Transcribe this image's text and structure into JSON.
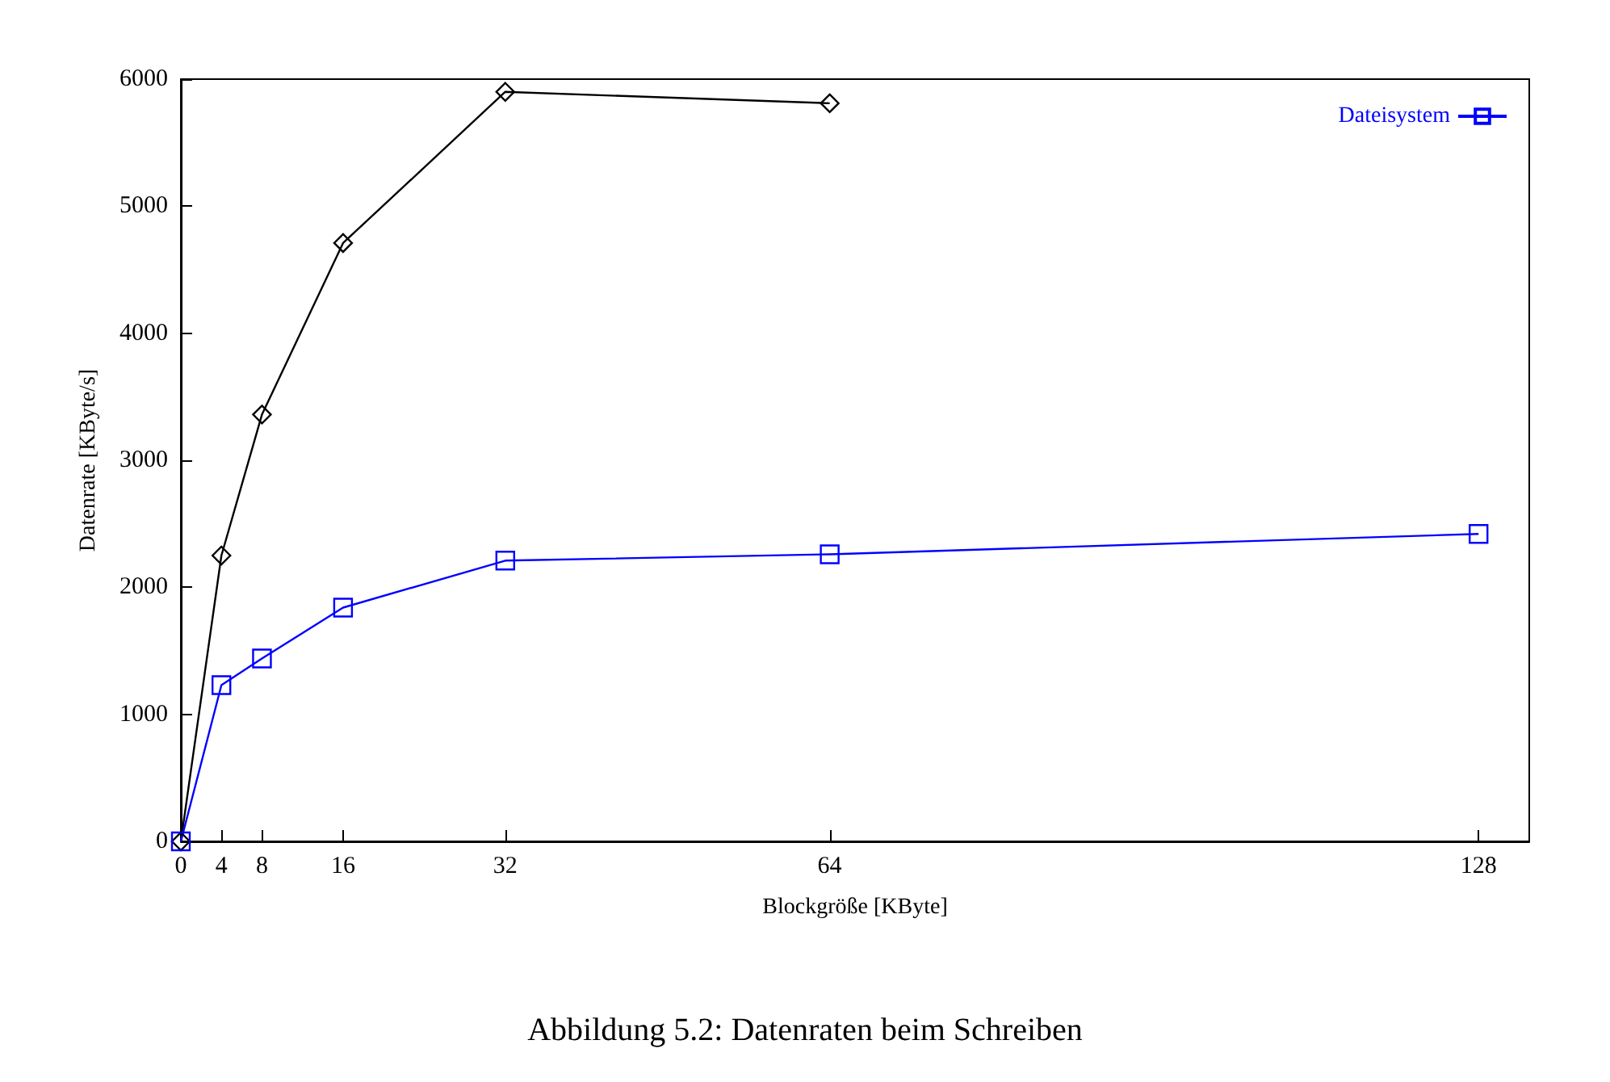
{
  "chart_data": {
    "type": "line",
    "xlabel": "Blockgröße [KByte]",
    "ylabel": "Datenrate [KByte/s]",
    "annotations": [
      "Abbildung 5.2: Datenraten beim Schreiben"
    ],
    "legend": "top right",
    "grid": false,
    "xlim": [
      0,
      133
    ],
    "xticks": [
      0,
      4,
      8,
      16,
      32,
      64,
      128
    ],
    "ylim": [
      0,
      6000
    ],
    "yticks": [
      0,
      1000,
      2000,
      3000,
      4000,
      5000,
      6000
    ],
    "series": [
      {
        "color": "#000000",
        "marker": "diamond",
        "x": [
          0,
          4,
          8,
          16,
          32,
          64
        ],
        "values": [
          0,
          2250,
          3360,
          4710,
          5900,
          5810
        ]
      },
      {
        "name": "Dateisystem",
        "color": "#0000ff",
        "marker": "square",
        "x": [
          0,
          4,
          8,
          16,
          32,
          64,
          128
        ],
        "values": [
          0,
          1230,
          1440,
          1840,
          2210,
          2260,
          2420
        ]
      }
    ]
  }
}
